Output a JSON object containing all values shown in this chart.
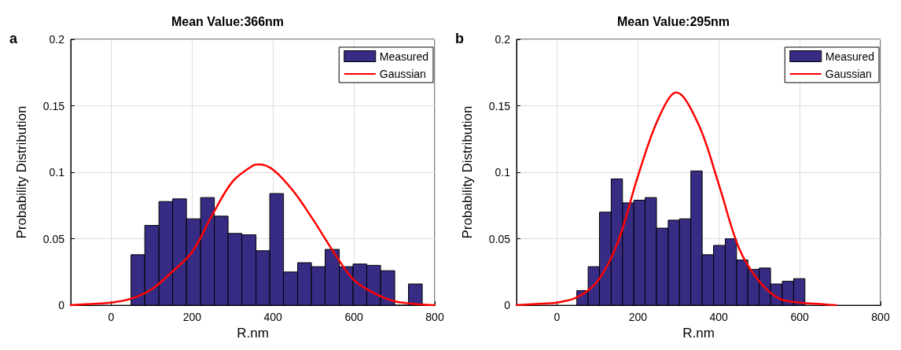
{
  "chart_data": [
    {
      "type": "histogram",
      "title": "Mean Value:366nm",
      "xlabel": "R.nm",
      "ylabel": "Probability Distribution",
      "annotations": [
        "a"
      ],
      "bins": [
        49,
        83,
        118,
        152,
        186,
        221,
        255,
        289,
        323,
        358,
        392,
        426,
        461,
        495,
        529,
        564,
        598,
        632,
        666,
        701,
        735,
        769
      ],
      "series": [
        {
          "name": "Measured",
          "color": "#372c84",
          "values": [
            0.038,
            0.06,
            0.078,
            0.08,
            0.065,
            0.081,
            0.067,
            0.054,
            0.053,
            0.041,
            0.084,
            0.025,
            0.032,
            0.029,
            0.042,
            0.029,
            0.031,
            0.03,
            0.026,
            0,
            0.016
          ]
        },
        {
          "name": "Gaussian",
          "type": "line",
          "color": "#ff0000",
          "x": [
            -100,
            -50,
            0,
            50,
            100,
            150,
            200,
            250,
            300,
            350,
            366,
            400,
            450,
            500,
            550,
            600,
            650,
            700,
            750,
            800
          ],
          "values": [
            0,
            0.001,
            0.002,
            0.005,
            0.012,
            0.025,
            0.04,
            0.068,
            0.093,
            0.105,
            0.106,
            0.102,
            0.086,
            0.064,
            0.04,
            0.019,
            0.009,
            0.003,
            0.001,
            0
          ]
        }
      ],
      "xlim": [
        -100,
        800
      ],
      "xticks": [
        0,
        200,
        400,
        600,
        800
      ],
      "ylim": [
        0,
        0.2
      ],
      "yticks": [
        0,
        0.05,
        0.1,
        0.15,
        0.2
      ],
      "grid": true,
      "legend": "top right",
      "marker": "none",
      "line_style": "solid"
    },
    {
      "type": "histogram",
      "title": "Mean Value:295nm",
      "xlabel": "R.nm",
      "ylabel": "Probability Distribution",
      "annotations": [
        "b"
      ],
      "bins": [
        49,
        77,
        105,
        134,
        162,
        190,
        218,
        246,
        275,
        303,
        331,
        359,
        387,
        416,
        444,
        472,
        500,
        528,
        557,
        585,
        613
      ],
      "series": [
        {
          "name": "Measured",
          "color": "#372c84",
          "values": [
            0.011,
            0.029,
            0.07,
            0.095,
            0.077,
            0.079,
            0.081,
            0.058,
            0.064,
            0.065,
            0.101,
            0.038,
            0.045,
            0.05,
            0.034,
            0.027,
            0.028,
            0.016,
            0.018,
            0.02
          ]
        },
        {
          "name": "Gaussian",
          "type": "line",
          "color": "#ff0000",
          "x": [
            -100,
            -50,
            0,
            50,
            100,
            150,
            200,
            250,
            295,
            350,
            400,
            450,
            500,
            550,
            600,
            650,
            690
          ],
          "values": [
            0,
            0.001,
            0.002,
            0.006,
            0.018,
            0.047,
            0.097,
            0.14,
            0.16,
            0.136,
            0.091,
            0.043,
            0.018,
            0.005,
            0.002,
            0.001,
            0
          ]
        }
      ],
      "xlim": [
        -100,
        800
      ],
      "xticks": [
        0,
        200,
        400,
        600,
        800
      ],
      "ylim": [
        0,
        0.2
      ],
      "yticks": [
        0,
        0.05,
        0.1,
        0.15,
        0.2
      ],
      "grid": true,
      "legend": "top right",
      "marker": "none",
      "line_style": "solid"
    }
  ]
}
